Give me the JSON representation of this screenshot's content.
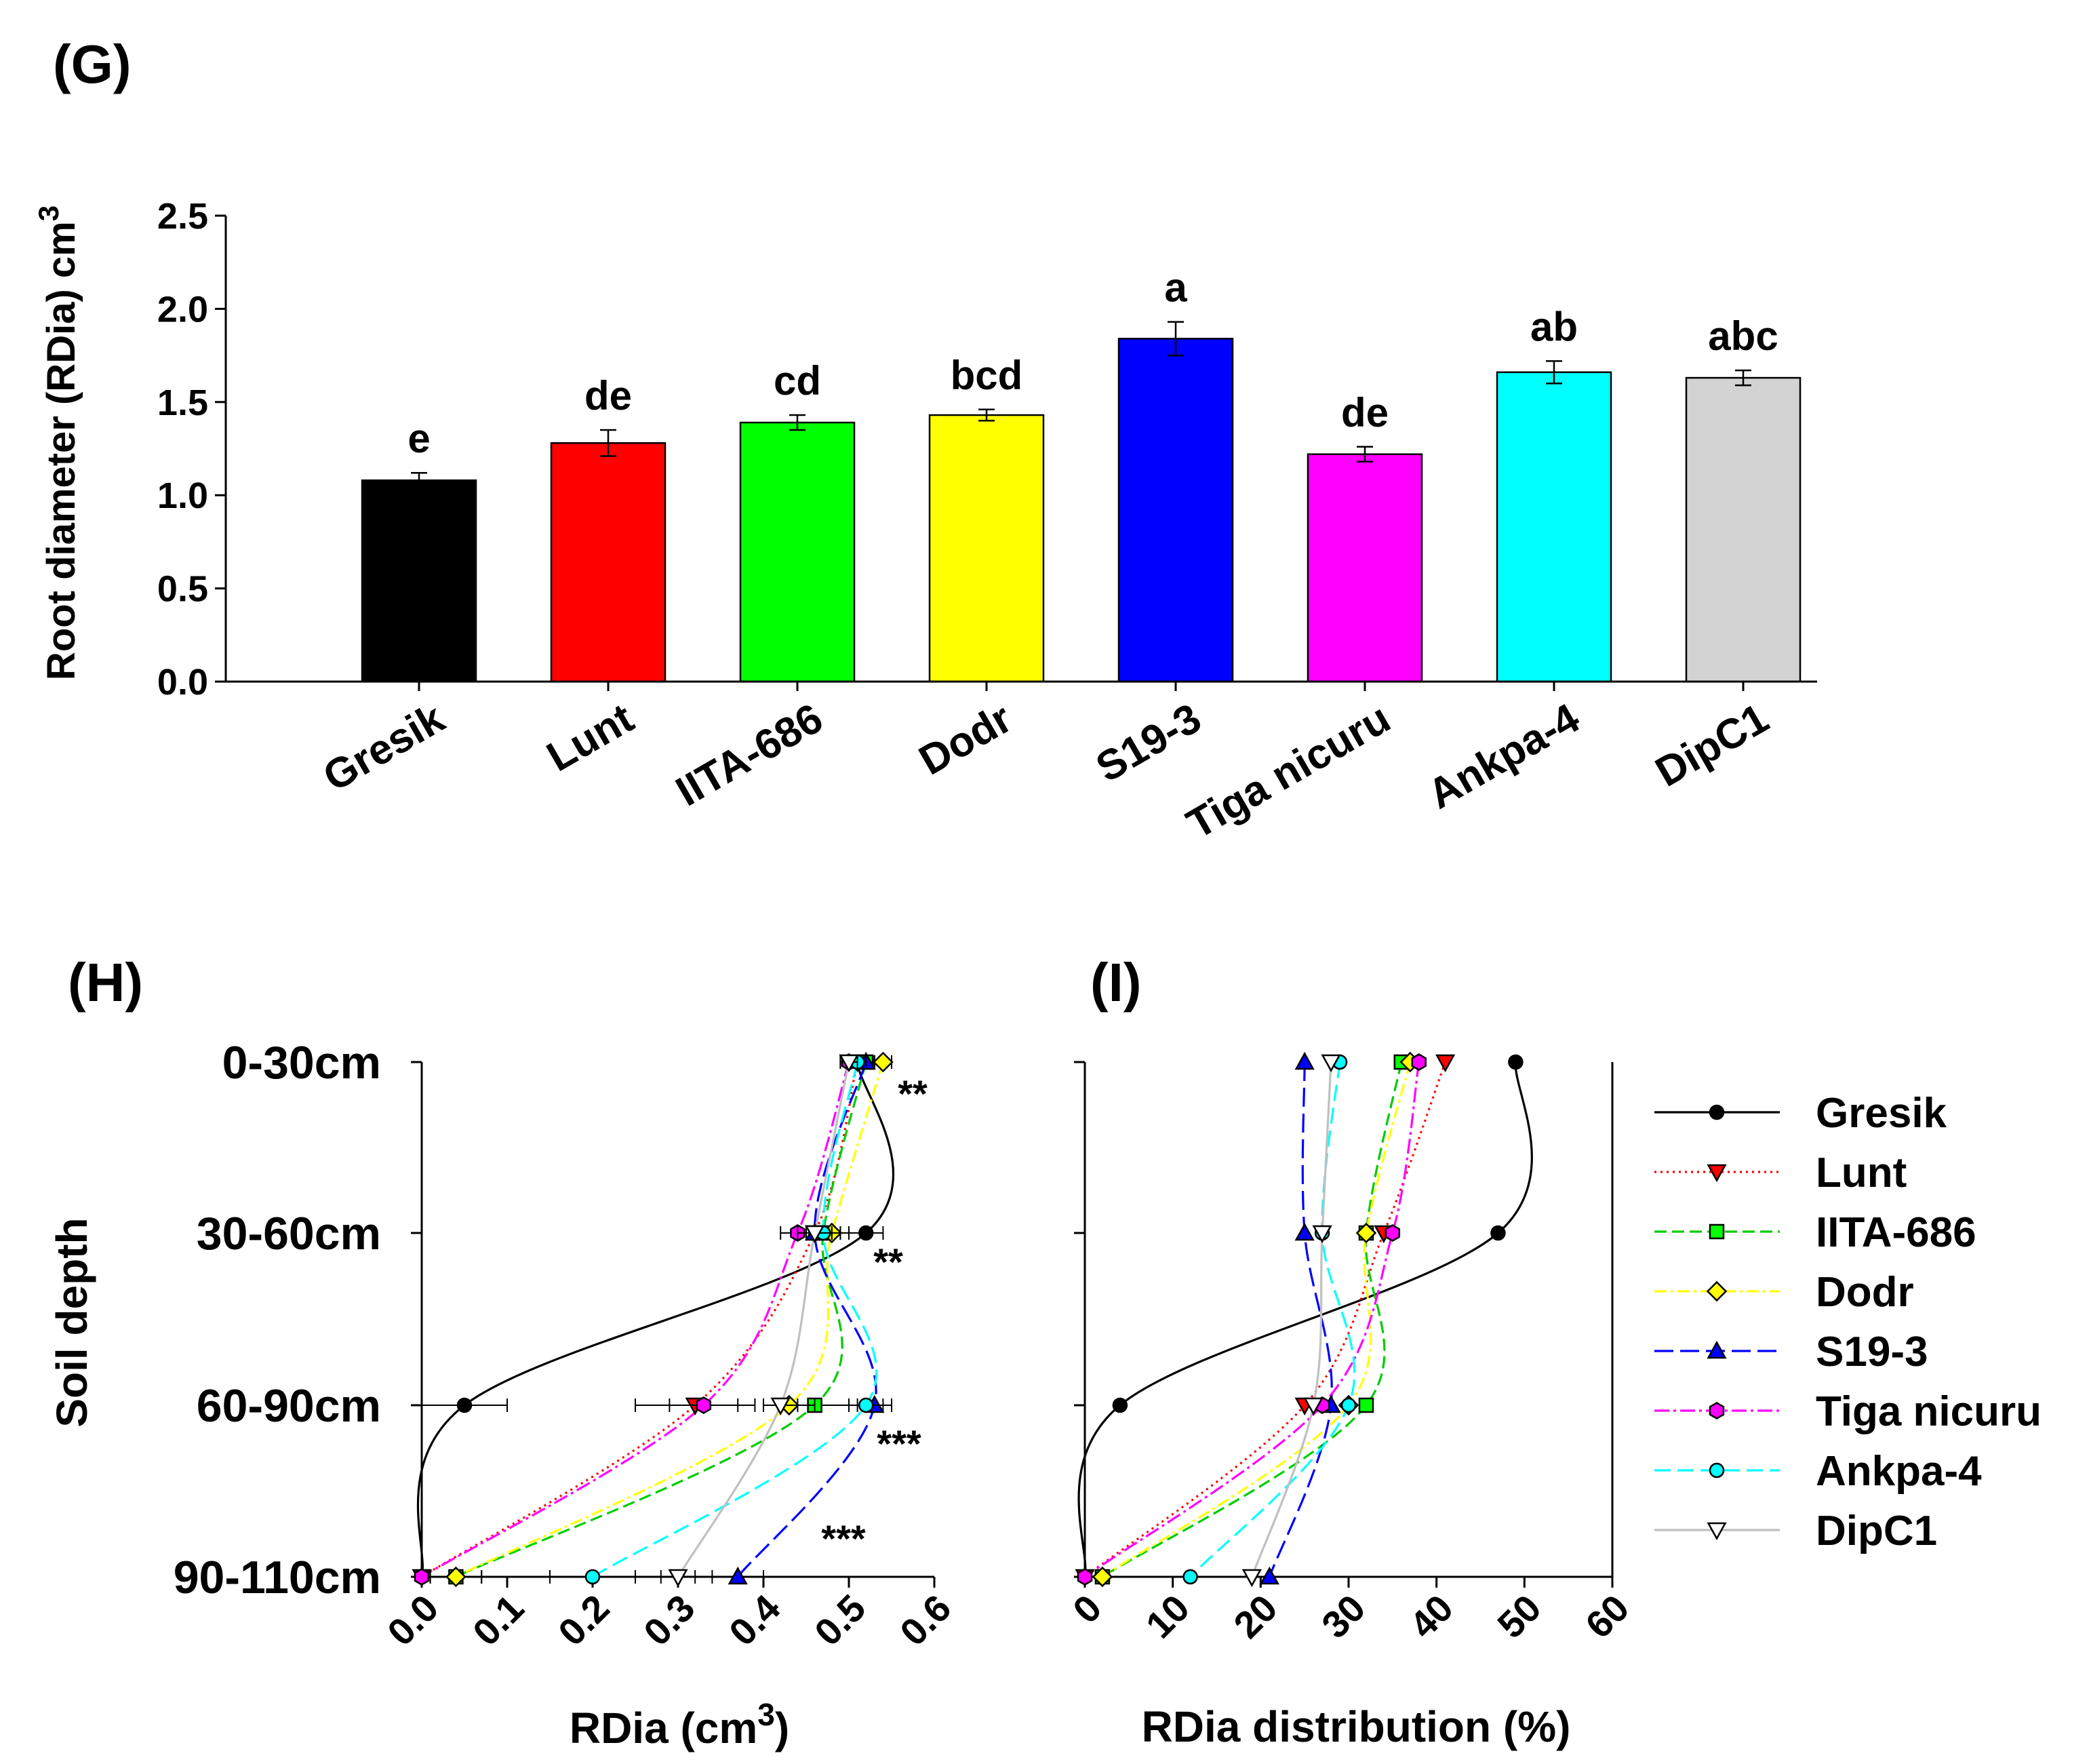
{
  "chart_data": [
    {
      "type": "bar",
      "panel": "(G)",
      "title": "",
      "xlabel": "",
      "ylabel": "Root diameter (RDia) cm",
      "ylabel_sup": "3",
      "ylim": [
        0,
        2.5
      ],
      "yticks": [
        "0.0",
        "0.5",
        "1.0",
        "1.5",
        "2.0",
        "2.5"
      ],
      "categories": [
        "Gresik",
        "Lunt",
        "IITA-686",
        "Dodr",
        "S19-3",
        "Tiga nicuru",
        "Ankpa-4",
        "DipC1"
      ],
      "values": [
        1.08,
        1.28,
        1.39,
        1.43,
        1.84,
        1.22,
        1.66,
        1.63
      ],
      "errors": [
        0.04,
        0.07,
        0.04,
        0.03,
        0.09,
        0.04,
        0.06,
        0.04
      ],
      "letters": [
        "e",
        "de",
        "cd",
        "bcd",
        "a",
        "de",
        "ab",
        "abc"
      ],
      "colors": [
        "#000000",
        "#ff0000",
        "#00ff00",
        "#ffff00",
        "#0000ff",
        "#ff00ff",
        "#00ffff",
        "#d3d3d3"
      ]
    },
    {
      "type": "line",
      "panel": "(H)",
      "xlabel": "RDia (cm",
      "xlabel_sup": "3",
      "xlabel_end": ")",
      "ylabel": "Soil depth",
      "xlim": [
        0,
        0.6
      ],
      "xticks": [
        "0.0",
        "0.1",
        "0.2",
        "0.3",
        "0.4",
        "0.5",
        "0.6"
      ],
      "depths": [
        "0-30cm",
        "30-60cm",
        "60-90cm",
        "90-110cm"
      ],
      "significance": [
        "**",
        "**",
        "***",
        "***"
      ],
      "series": [
        {
          "name": "Gresik",
          "values": [
            0.51,
            0.52,
            0.05,
            0.0
          ],
          "errors": [
            0.01,
            0.02,
            0.05,
            0.0
          ]
        },
        {
          "name": "Lunt",
          "values": [
            0.51,
            0.46,
            0.32,
            0.0
          ],
          "errors": [
            0.01,
            0.02,
            0.07,
            0.0
          ]
        },
        {
          "name": "IITA-686",
          "values": [
            0.52,
            0.47,
            0.46,
            0.04
          ],
          "errors": [
            0.01,
            0.02,
            0.04,
            0.03
          ]
        },
        {
          "name": "Dodr",
          "values": [
            0.54,
            0.48,
            0.43,
            0.04
          ],
          "errors": [
            0.01,
            0.02,
            0.03,
            0.03
          ]
        },
        {
          "name": "S19-3",
          "values": [
            0.52,
            0.46,
            0.53,
            0.37
          ],
          "errors": [
            0.01,
            0.02,
            0.02,
            0.03
          ]
        },
        {
          "name": "Tiga nicuru",
          "values": [
            0.5,
            0.44,
            0.33,
            0.0
          ],
          "errors": [
            0.01,
            0.02,
            0.04,
            0.0
          ]
        },
        {
          "name": "Ankpa-4",
          "values": [
            0.51,
            0.47,
            0.52,
            0.2
          ],
          "errors": [
            0.01,
            0.02,
            0.02,
            0.05
          ]
        },
        {
          "name": "DipC1",
          "values": [
            0.5,
            0.46,
            0.42,
            0.3
          ],
          "errors": [
            0.01,
            0.02,
            0.02,
            0.02
          ]
        }
      ]
    },
    {
      "type": "line",
      "panel": "(I)",
      "xlabel": "RDia distribution (%)",
      "ylabel": "",
      "xlim": [
        0,
        60
      ],
      "xticks": [
        "0",
        "10",
        "20",
        "30",
        "40",
        "50",
        "60"
      ],
      "depths": [
        "0-30cm",
        "30-60cm",
        "60-90cm",
        "90-110cm"
      ],
      "series": [
        {
          "name": "Gresik",
          "values": [
            49,
            47,
            4,
            0
          ]
        },
        {
          "name": "Lunt",
          "values": [
            41,
            34,
            25,
            0
          ]
        },
        {
          "name": "IITA-686",
          "values": [
            36,
            32,
            32,
            2
          ]
        },
        {
          "name": "Dodr",
          "values": [
            37,
            32,
            30,
            2
          ]
        },
        {
          "name": "S19-3",
          "values": [
            25,
            25,
            28,
            21
          ]
        },
        {
          "name": "Tiga nicuru",
          "values": [
            38,
            35,
            27,
            0
          ]
        },
        {
          "name": "Ankpa-4",
          "values": [
            29,
            27,
            30,
            12
          ]
        },
        {
          "name": "DipC1",
          "values": [
            28,
            27,
            26,
            19
          ]
        }
      ]
    }
  ],
  "legend": {
    "entries": [
      {
        "name": "Gresik",
        "color": "#000000",
        "marker": "circle",
        "dash": ""
      },
      {
        "name": "Lunt",
        "color": "#ff0000",
        "marker": "triangle-down",
        "dash": "3,6"
      },
      {
        "name": "IITA-686",
        "color": "#00cc00",
        "marker": "square",
        "dash": "18,8"
      },
      {
        "name": "Dodr",
        "color": "#ffff00",
        "marker": "diamond",
        "dash": "18,6,4,6"
      },
      {
        "name": "S19-3",
        "color": "#0000ff",
        "marker": "triangle-up",
        "dash": "28,10"
      },
      {
        "name": "Tiga nicuru",
        "color": "#ff00ff",
        "marker": "hexagon",
        "dash": "22,6,4,6"
      },
      {
        "name": "Ankpa-4",
        "color": "#00ffff",
        "marker": "circle",
        "dash": "24,10"
      },
      {
        "name": "DipC1",
        "color": "#c0c0c0",
        "marker": "triangle-down-open",
        "dash": ""
      }
    ],
    "marker_fills": [
      "#000000",
      "#ff0000",
      "#00ff00",
      "#ffff00",
      "#0000ff",
      "#ff00ff",
      "#00ffff",
      "#ffffff"
    ]
  }
}
